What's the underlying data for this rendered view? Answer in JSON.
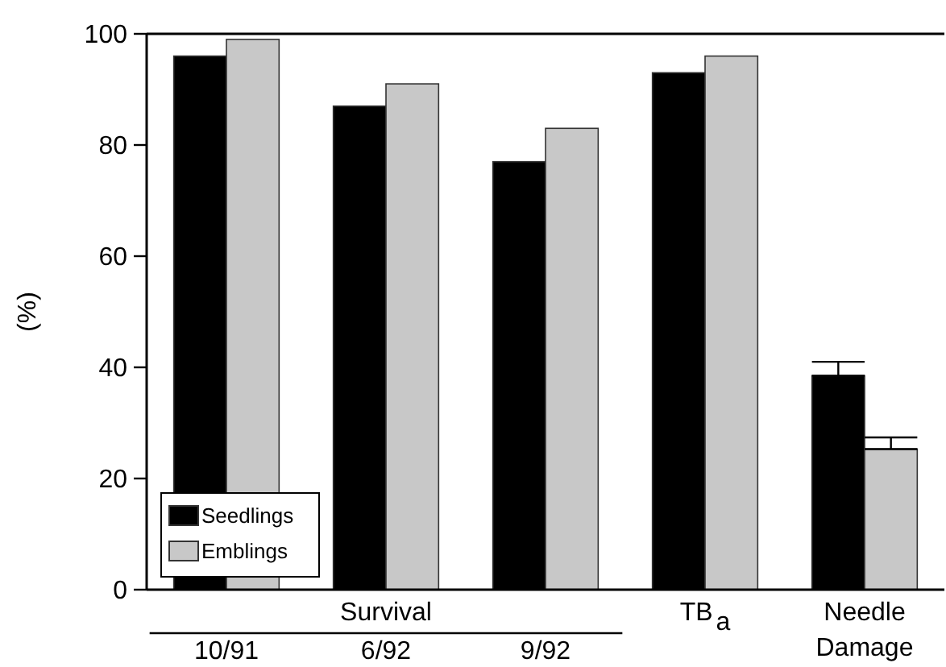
{
  "chart_data": {
    "type": "bar",
    "ylabel": "(%)",
    "categories": [
      "10/91",
      "6/92",
      "9/92",
      "TB$_{a}$",
      "Needle Damage"
    ],
    "series": [
      {
        "name": "Seedlings",
        "color": "#000000",
        "values": [
          96,
          87,
          77,
          93,
          38.5
        ],
        "errors": [
          null,
          null,
          null,
          null,
          [
            38.5,
            41
          ]
        ]
      },
      {
        "name": "Emblings",
        "color": "#c8c8c8",
        "values": [
          99,
          91,
          83,
          96,
          25.3
        ],
        "errors": [
          null,
          null,
          null,
          null,
          [
            25.3,
            27.4
          ]
        ]
      }
    ],
    "ylim": [
      0,
      100
    ],
    "yticks": [
      0,
      20,
      40,
      60,
      80,
      100
    ],
    "grid": false,
    "legend": "bottom left",
    "annotations": [
      "Survival"
    ]
  }
}
